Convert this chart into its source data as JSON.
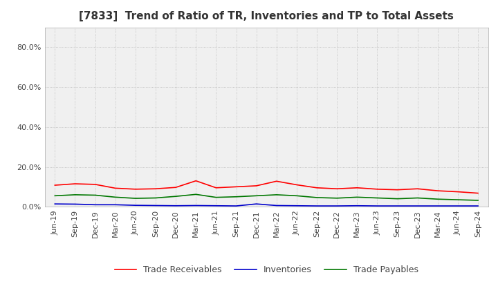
{
  "title": "[7833]  Trend of Ratio of TR, Inventories and TP to Total Assets",
  "x_labels": [
    "Jun-19",
    "Sep-19",
    "Dec-19",
    "Mar-20",
    "Jun-20",
    "Sep-20",
    "Dec-20",
    "Mar-21",
    "Jun-21",
    "Sep-21",
    "Dec-21",
    "Mar-22",
    "Jun-22",
    "Sep-22",
    "Dec-22",
    "Mar-23",
    "Jun-23",
    "Sep-23",
    "Dec-23",
    "Mar-24",
    "Jun-24",
    "Sep-24"
  ],
  "trade_receivables": [
    0.108,
    0.115,
    0.112,
    0.093,
    0.088,
    0.09,
    0.097,
    0.13,
    0.095,
    0.1,
    0.105,
    0.128,
    0.11,
    0.095,
    0.09,
    0.095,
    0.088,
    0.085,
    0.09,
    0.08,
    0.075,
    0.068
  ],
  "inventories": [
    0.014,
    0.013,
    0.01,
    0.01,
    0.007,
    0.006,
    0.005,
    0.006,
    0.005,
    0.004,
    0.014,
    0.006,
    0.005,
    0.004,
    0.004,
    0.005,
    0.004,
    0.004,
    0.004,
    0.004,
    0.004,
    0.004
  ],
  "trade_payables": [
    0.055,
    0.06,
    0.058,
    0.048,
    0.042,
    0.044,
    0.052,
    0.062,
    0.047,
    0.05,
    0.055,
    0.06,
    0.055,
    0.046,
    0.043,
    0.048,
    0.044,
    0.04,
    0.044,
    0.038,
    0.035,
    0.032
  ],
  "ylim": [
    0.0,
    0.9
  ],
  "yticks": [
    0.0,
    0.2,
    0.4,
    0.6,
    0.8
  ],
  "ytick_labels": [
    "0.0%",
    "20.0%",
    "40.0%",
    "60.0%",
    "80.0%"
  ],
  "colors": {
    "trade_receivables": "#ff0000",
    "inventories": "#0000cc",
    "trade_payables": "#007700"
  },
  "legend_labels": [
    "Trade Receivables",
    "Inventories",
    "Trade Payables"
  ],
  "background_color": "#ffffff",
  "plot_bg_color": "#f0f0f0",
  "grid_color": "#aaaaaa",
  "title_fontsize": 11,
  "tick_fontsize": 8,
  "legend_fontsize": 9
}
